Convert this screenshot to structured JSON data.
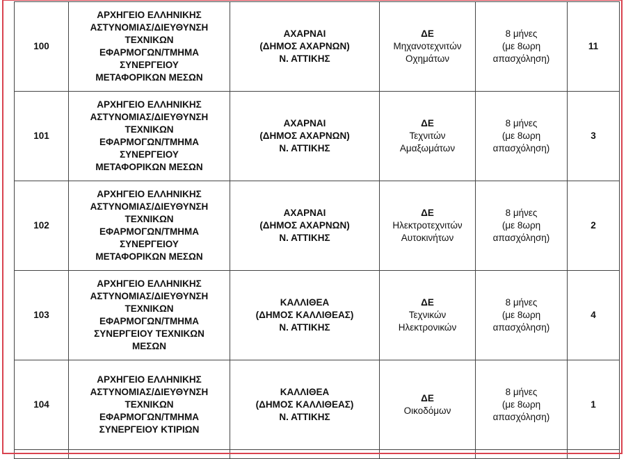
{
  "rows": [
    {
      "num": "100",
      "service": "ΑΡΧΗΓΕΙΟ ΕΛΛΗΝΙΚΗΣ\nΑΣΤΥΝΟΜΙΑΣ/ΔΙΕΥΘΥΝΣΗ\nΤΕΧΝΙΚΩΝ\nΕΦΑΡΜΟΓΩΝ/ΤΜΗΜΑ\nΣΥΝΕΡΓΕΙΟΥ\nΜΕΤΑΦΟΡΙΚΩΝ ΜΕΣΩΝ",
      "location": "ΑΧΑΡΝΑΙ\n(ΔΗΜΟΣ ΑΧΑΡΝΩΝ)\nΝ. ΑΤΤΙΚΗΣ",
      "category": "ΔΕ",
      "specialty": "Μηχανοτεχνιτών\nΟχημάτων",
      "duration": "8 μήνες\n(με 8ωρη\nαπασχόληση)",
      "count": "11"
    },
    {
      "num": "101",
      "service": "ΑΡΧΗΓΕΙΟ ΕΛΛΗΝΙΚΗΣ\nΑΣΤΥΝΟΜΙΑΣ/ΔΙΕΥΘΥΝΣΗ\nΤΕΧΝΙΚΩΝ\nΕΦΑΡΜΟΓΩΝ/ΤΜΗΜΑ\nΣΥΝΕΡΓΕΙΟΥ\nΜΕΤΑΦΟΡΙΚΩΝ ΜΕΣΩΝ",
      "location": "ΑΧΑΡΝΑΙ\n(ΔΗΜΟΣ ΑΧΑΡΝΩΝ)\nΝ. ΑΤΤΙΚΗΣ",
      "category": "ΔΕ",
      "specialty": "Τεχνιτών\nΑμαξωμάτων",
      "duration": "8 μήνες\n(με 8ωρη\nαπασχόληση)",
      "count": "3"
    },
    {
      "num": "102",
      "service": "ΑΡΧΗΓΕΙΟ ΕΛΛΗΝΙΚΗΣ\nΑΣΤΥΝΟΜΙΑΣ/ΔΙΕΥΘΥΝΣΗ\nΤΕΧΝΙΚΩΝ\nΕΦΑΡΜΟΓΩΝ/ΤΜΗΜΑ\nΣΥΝΕΡΓΕΙΟΥ\nΜΕΤΑΦΟΡΙΚΩΝ ΜΕΣΩΝ",
      "location": "ΑΧΑΡΝΑΙ\n(ΔΗΜΟΣ ΑΧΑΡΝΩΝ)\nΝ. ΑΤΤΙΚΗΣ",
      "category": "ΔΕ",
      "specialty": "Ηλεκτροτεχνιτών\nΑυτοκινήτων",
      "duration": "8 μήνες\n(με 8ωρη\nαπασχόληση)",
      "count": "2"
    },
    {
      "num": "103",
      "service": "ΑΡΧΗΓΕΙΟ ΕΛΛΗΝΙΚΗΣ\nΑΣΤΥΝΟΜΙΑΣ/ΔΙΕΥΘΥΝΣΗ\nΤΕΧΝΙΚΩΝ\nΕΦΑΡΜΟΓΩΝ/ΤΜΗΜΑ\nΣΥΝΕΡΓΕΙΟΥ ΤΕΧΝΙΚΩΝ\nΜΕΣΩΝ",
      "location": "ΚΑΛΛΙΘΕΑ\n(ΔΗΜΟΣ ΚΑΛΛΙΘΕΑΣ)\nΝ. ΑΤΤΙΚΗΣ",
      "category": "ΔΕ",
      "specialty": "Τεχνικών\nΗλεκτρονικών",
      "duration": "8 μήνες\n(με 8ωρη\nαπασχόληση)",
      "count": "4"
    },
    {
      "num": "104",
      "service": "ΑΡΧΗΓΕΙΟ ΕΛΛΗΝΙΚΗΣ\nΑΣΤΥΝΟΜΙΑΣ/ΔΙΕΥΘΥΝΣΗ\nΤΕΧΝΙΚΩΝ\nΕΦΑΡΜΟΓΩΝ/ΤΜΗΜΑ\nΣΥΝΕΡΓΕΙΟΥ ΚΤΙΡΙΩΝ",
      "location": "ΚΑΛΛΙΘΕΑ\n(ΔΗΜΟΣ ΚΑΛΛΙΘΕΑΣ)\nΝ. ΑΤΤΙΚΗΣ",
      "category": "ΔΕ",
      "specialty": "Οικοδόμων",
      "duration": "8 μήνες\n(με 8ωρη\nαπασχόληση)",
      "count": "1"
    }
  ]
}
